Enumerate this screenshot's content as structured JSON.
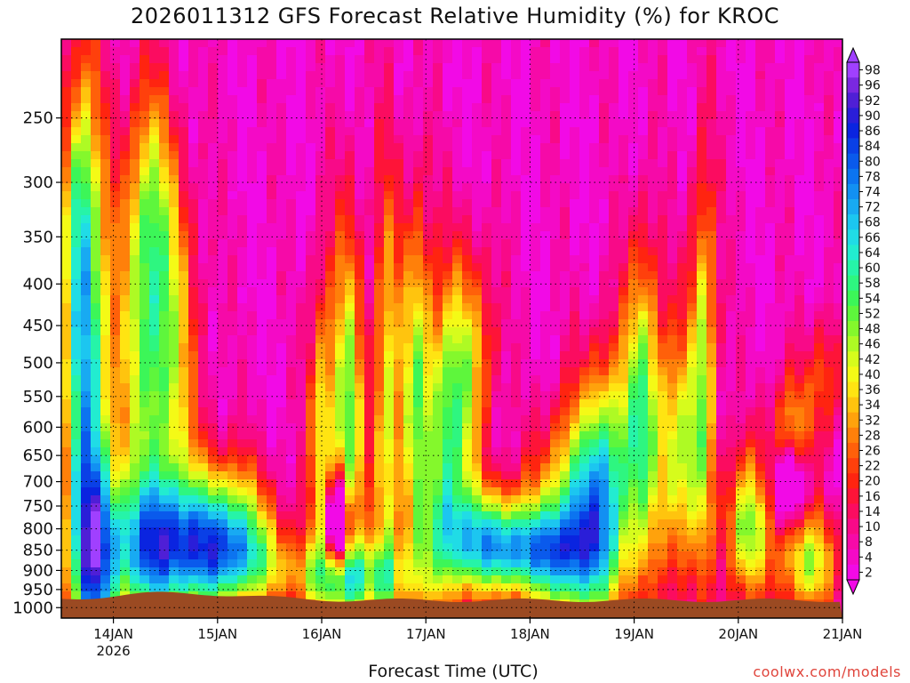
{
  "chart_data": {
    "type": "heatmap",
    "title": "2026011312 GFS Forecast Relative Humidity (%) for KROC",
    "xlabel": "Forecast Time (UTC)",
    "ylabel": "",
    "x_ticks": [
      {
        "label": "14JAN",
        "sub": "2026",
        "hours": 12
      },
      {
        "label": "15JAN",
        "sub": "",
        "hours": 36
      },
      {
        "label": "16JAN",
        "sub": "",
        "hours": 60
      },
      {
        "label": "17JAN",
        "sub": "",
        "hours": 84
      },
      {
        "label": "18JAN",
        "sub": "",
        "hours": 108
      },
      {
        "label": "19JAN",
        "sub": "",
        "hours": 132
      },
      {
        "label": "20JAN",
        "sub": "",
        "hours": 156
      },
      {
        "label": "21JAN",
        "sub": "",
        "hours": 180
      }
    ],
    "xlim_hours": [
      0,
      180
    ],
    "y_levels": [
      "250",
      "300",
      "350",
      "400",
      "450",
      "500",
      "550",
      "600",
      "650",
      "700",
      "750",
      "800",
      "850",
      "900",
      "950",
      "1000"
    ],
    "ylim_hpa": [
      1030,
      200
    ],
    "y_scale": "log-pressure",
    "grid": true,
    "colorbar": {
      "position": "right",
      "labels": [
        "98",
        "96",
        "92",
        "90",
        "86",
        "84",
        "80",
        "78",
        "74",
        "72",
        "68",
        "66",
        "64",
        "60",
        "58",
        "54",
        "52",
        "48",
        "46",
        "42",
        "40",
        "36",
        "34",
        "32",
        "28",
        "26",
        "22",
        "20",
        "16",
        "14",
        "10",
        "8",
        "4",
        "2"
      ],
      "colors": [
        "#a040ff",
        "#7a28e0",
        "#4f1fd6",
        "#2a1ed8",
        "#0a24e0",
        "#0a40e6",
        "#0a5aec",
        "#0c74f0",
        "#1290f2",
        "#18aaf2",
        "#1cc6f0",
        "#20dce6",
        "#22ecd0",
        "#26f4a8",
        "#2ef680",
        "#3cf658",
        "#5ef63c",
        "#84f82c",
        "#aefa24",
        "#d6fc1c",
        "#f4fa16",
        "#ffe412",
        "#ffc40e",
        "#ffa20c",
        "#ff800a",
        "#ff600a",
        "#ff400c",
        "#ff2410",
        "#fe1438",
        "#fb0c60",
        "#f80a88",
        "#f60aa8",
        "#f40ac6",
        "#f20ae6"
      ]
    },
    "surface_ground": true
  },
  "credit": "coolwx.com/models",
  "colors": {
    "ground": "#9b4a22",
    "axis": "#000000"
  }
}
